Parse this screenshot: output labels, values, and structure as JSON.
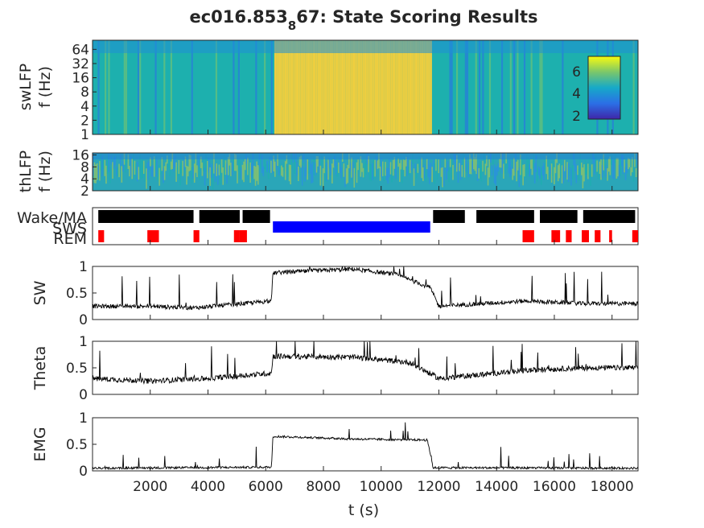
{
  "title": {
    "prefix": "ec016.853",
    "subscript": "8",
    "suffix": "67: State Scoring Results"
  },
  "chart_data": [
    {
      "type": "heatmap",
      "name": "swLFP spectrogram",
      "ylabel_line1": "swLFP",
      "ylabel_line2": "f (Hz)",
      "yticks": [
        "1",
        "2",
        "4",
        "8",
        "16",
        "32",
        "64"
      ],
      "yscale": "log",
      "colorbar": {
        "ticks": [
          "2",
          "4",
          "6"
        ]
      },
      "colors": {
        "low": "#3e26a8",
        "mid": "#1db0ae",
        "high": "#f9d03a"
      }
    },
    {
      "type": "heatmap",
      "name": "thLFP spectrogram",
      "ylabel_line1": "thLFP",
      "ylabel_line2": "f (Hz)",
      "yticks": [
        "2",
        "4",
        "8",
        "16"
      ],
      "yscale": "log"
    },
    {
      "type": "raster",
      "name": "state hypnogram",
      "states": [
        {
          "label": "Wake/MA",
          "color": "#000000",
          "epochs": [
            [
              200,
              3500
            ],
            [
              3700,
              5100
            ],
            [
              5200,
              6150
            ],
            [
              11800,
              12900
            ],
            [
              13300,
              15300
            ],
            [
              15500,
              16800
            ],
            [
              17000,
              18800
            ]
          ]
        },
        {
          "label": "SWS",
          "color": "#0000ff",
          "epochs": [
            [
              6250,
              11700
            ]
          ]
        },
        {
          "label": "REM",
          "color": "#ff0000",
          "epochs": [
            [
              200,
              400
            ],
            [
              1900,
              2300
            ],
            [
              3500,
              3700
            ],
            [
              4900,
              5100
            ],
            [
              5100,
              5350
            ],
            [
              14900,
              15300
            ],
            [
              15900,
              16200
            ],
            [
              16400,
              16600
            ],
            [
              16950,
              17200
            ],
            [
              17400,
              17600
            ],
            [
              17900,
              18000
            ],
            [
              18700,
              18900
            ]
          ]
        }
      ]
    },
    {
      "type": "line",
      "name": "SW",
      "ylabel": "SW",
      "ylim": [
        0,
        1
      ],
      "yticks": [
        "0",
        "0.5",
        "1"
      ],
      "segments": [
        [
          0,
          0.25
        ],
        [
          2000,
          0.25
        ],
        [
          3500,
          0.22
        ],
        [
          5200,
          0.3
        ],
        [
          6200,
          0.35
        ],
        [
          6250,
          0.88
        ],
        [
          9000,
          0.95
        ],
        [
          10500,
          0.85
        ],
        [
          11700,
          0.6
        ],
        [
          12000,
          0.25
        ],
        [
          15000,
          0.35
        ],
        [
          17000,
          0.3
        ],
        [
          18800,
          0.3
        ]
      ]
    },
    {
      "type": "line",
      "name": "Theta",
      "ylabel": "Theta",
      "ylim": [
        0,
        1
      ],
      "yticks": [
        "0",
        "0.5",
        "1"
      ],
      "segments": [
        [
          0,
          0.3
        ],
        [
          2000,
          0.25
        ],
        [
          4000,
          0.3
        ],
        [
          6200,
          0.4
        ],
        [
          6250,
          0.72
        ],
        [
          9000,
          0.7
        ],
        [
          11000,
          0.6
        ],
        [
          12000,
          0.3
        ],
        [
          15000,
          0.45
        ],
        [
          17000,
          0.5
        ],
        [
          18800,
          0.5
        ]
      ]
    },
    {
      "type": "line",
      "name": "EMG",
      "ylabel": "EMG",
      "ylim": [
        0,
        1
      ],
      "yticks": [
        "0",
        "0.5",
        "1"
      ],
      "segments": [
        [
          0,
          0.05
        ],
        [
          6200,
          0.07
        ],
        [
          6250,
          0.65
        ],
        [
          9000,
          0.6
        ],
        [
          11600,
          0.58
        ],
        [
          11800,
          0.06
        ],
        [
          18800,
          0.05
        ]
      ]
    }
  ],
  "xaxis": {
    "label": "t (s)",
    "xlim": [
      0,
      18900
    ],
    "ticks": [
      2000,
      4000,
      6000,
      8000,
      10000,
      12000,
      14000,
      16000,
      18000
    ]
  }
}
